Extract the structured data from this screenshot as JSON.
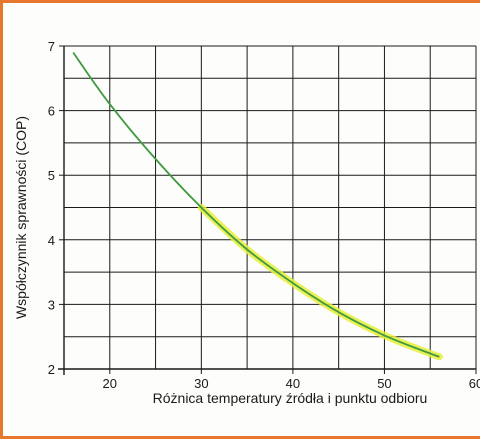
{
  "colors": {
    "frame_border": "#e8772e",
    "curve": "#3f9a3f",
    "highlight": "#e6ef3a",
    "grid": "#1a1a1a",
    "background": "#fdfdfb"
  },
  "chart_data": {
    "type": "line",
    "title": "",
    "xlabel": "Różnica temperatury źródła i punktu odbioru",
    "ylabel": "Współczynnik sprawności (COP)",
    "xlim": [
      15,
      60
    ],
    "ylim": [
      2,
      7
    ],
    "x_ticks": [
      20,
      30,
      40,
      50,
      60
    ],
    "y_ticks": [
      2,
      3,
      4,
      5,
      6,
      7
    ],
    "x_tick_labels": [
      "20",
      "30",
      "40",
      "50",
      "60"
    ],
    "y_tick_labels": [
      "2",
      "3",
      "4",
      "5",
      "6",
      "7"
    ],
    "grid": true,
    "series": [
      {
        "x": [
          16,
          20,
          25,
          30,
          35,
          40,
          45,
          50,
          55,
          56
        ],
        "y": [
          6.9,
          6.1,
          5.25,
          4.5,
          3.85,
          3.33,
          2.88,
          2.52,
          2.24,
          2.19
        ],
        "highlight_from_x": 30
      }
    ]
  }
}
